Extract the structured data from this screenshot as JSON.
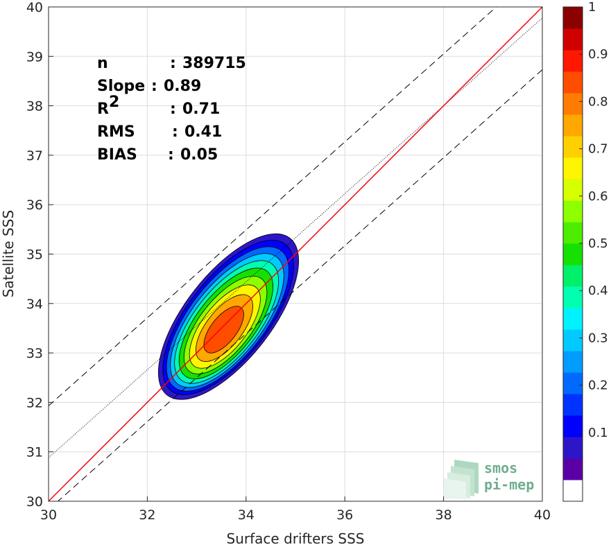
{
  "chart_data": {
    "type": "contour-scatter",
    "xlabel": "Surface drifters SSS",
    "ylabel": "Satellite SSS",
    "xlim": [
      30,
      40
    ],
    "ylim": [
      30,
      40
    ],
    "xticks": [
      "30",
      "32",
      "34",
      "36",
      "38",
      "40"
    ],
    "yticks": [
      "30",
      "31",
      "32",
      "33",
      "34",
      "35",
      "36",
      "37",
      "38",
      "39",
      "40"
    ],
    "grid": true,
    "stats": [
      {
        "label": "n",
        "sep": ": ",
        "value": "389715"
      },
      {
        "label": "Slope",
        "sep": ": ",
        "value": "0.89"
      },
      {
        "label": "R",
        "sup": "2",
        "sep": ": ",
        "value": "0.71"
      },
      {
        "label": "RMS",
        "sep": ": ",
        "value": "0.41"
      },
      {
        "label": "BIAS",
        "sep": ": ",
        "value": "0.05"
      }
    ],
    "identity_line": {
      "color": "#ff0000",
      "from": [
        30,
        30
      ],
      "to": [
        40,
        40
      ]
    },
    "fit_line": {
      "slope": 0.89,
      "intercept": 4.18,
      "color": "#000000",
      "style": "dotted"
    },
    "rms_bounds": {
      "offset": 1.05,
      "color": "#000000",
      "style": "dashed"
    },
    "density_center": [
      33.65,
      33.75
    ],
    "density_levels": [
      0.05,
      0.1,
      0.2,
      0.3,
      0.4,
      0.5,
      0.6,
      0.7,
      0.8,
      0.9
    ],
    "colorbar": {
      "range": [
        0,
        1
      ],
      "ticks": [
        "0.1",
        "0.2",
        "0.3",
        "0.4",
        "0.5",
        "0.6",
        "0.7",
        "0.8",
        "0.9",
        "1"
      ],
      "colors": [
        "#ffffff",
        "#5b00a6",
        "#2d16c8",
        "#0000ff",
        "#0033ff",
        "#006aff",
        "#009cff",
        "#00caff",
        "#00f2ff",
        "#00ffb0",
        "#00f06a",
        "#16e000",
        "#4ded00",
        "#8eff00",
        "#d6ff00",
        "#fff500",
        "#ffd000",
        "#ffa800",
        "#ff7c00",
        "#ff4d00",
        "#ff1800",
        "#d10000",
        "#8c0000"
      ]
    }
  },
  "logo": {
    "line1": "smos",
    "line2": "pi-mep"
  }
}
